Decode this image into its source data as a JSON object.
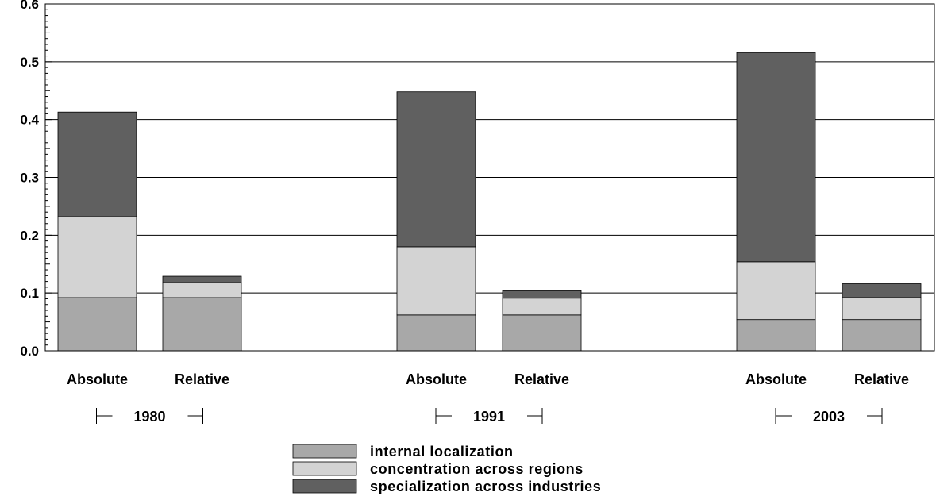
{
  "chart_data": {
    "type": "bar",
    "stacked": true,
    "groups": [
      "1980",
      "1991",
      "2003"
    ],
    "bar_labels": [
      "Absolute",
      "Relative"
    ],
    "categories": [
      "1980 Absolute",
      "1980 Relative",
      "1991 Absolute",
      "1991 Relative",
      "2003 Absolute",
      "2003 Relative"
    ],
    "series": [
      {
        "name": "internal localization",
        "color": "#a8a8a8",
        "values": [
          0.092,
          0.092,
          0.062,
          0.062,
          0.054,
          0.054
        ]
      },
      {
        "name": "concentration across regions",
        "color": "#d3d3d3",
        "values": [
          0.14,
          0.026,
          0.118,
          0.029,
          0.1,
          0.038
        ]
      },
      {
        "name": "specialization across industries",
        "color": "#606060",
        "values": [
          0.181,
          0.011,
          0.268,
          0.013,
          0.362,
          0.024
        ]
      }
    ],
    "yticks": [
      "0.0",
      "0.1",
      "0.2",
      "0.3",
      "0.4",
      "0.5",
      "0.6"
    ],
    "ylim": [
      0,
      0.6
    ],
    "grid": true,
    "legend_position": "bottom-center"
  }
}
